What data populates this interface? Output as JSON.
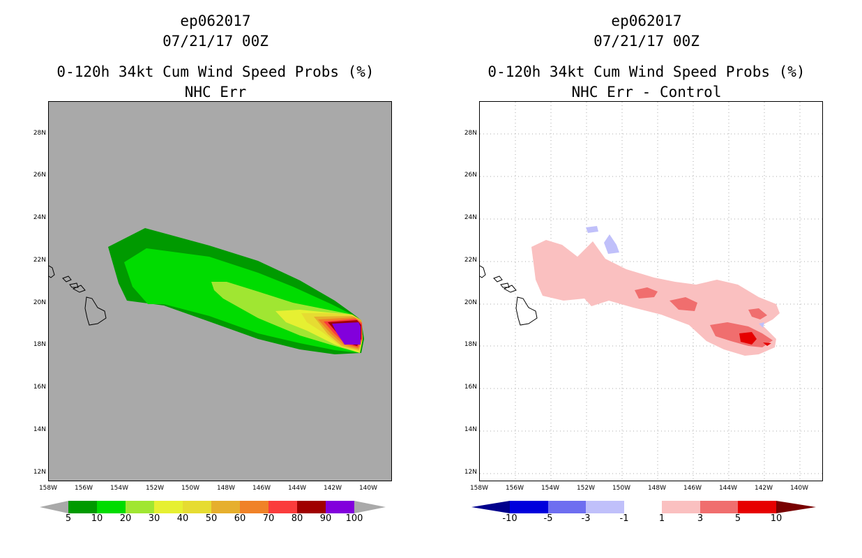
{
  "left_panel": {
    "storm_id": "ep062017",
    "datetime": "07/21/17 00Z",
    "product": "0-120h 34kt Cum Wind Speed Probs (%)",
    "subtitle": "NHC Err",
    "background_color": "#a9a9a9",
    "colorbar": {
      "labels": [
        "5",
        "10",
        "20",
        "30",
        "40",
        "50",
        "60",
        "70",
        "80",
        "90",
        "100"
      ],
      "colors": [
        "#009a00",
        "#00dc00",
        "#a0e632",
        "#e6f032",
        "#e6dc32",
        "#e6af2d",
        "#f08228",
        "#fa3c3c",
        "#a00000",
        "#8200dc"
      ],
      "end_colors": [
        "#a9a9a9",
        "#a9a9a9"
      ]
    }
  },
  "right_panel": {
    "storm_id": "ep062017",
    "datetime": "07/21/17 00Z",
    "product": "0-120h 34kt Cum Wind Speed Probs (%)",
    "subtitle": "NHC Err - Control",
    "background_color": "#ffffff",
    "colorbar": {
      "labels": [
        "-10",
        "-5",
        "-3",
        "-1",
        "1",
        "3",
        "5",
        "10"
      ],
      "colors": [
        "#0000dc",
        "#6e6ef0",
        "#c0c0fa",
        "#ffffff",
        "#fac0c0",
        "#f06e6e",
        "#e60000"
      ],
      "end_colors": [
        "#00008c",
        "#780000"
      ]
    }
  },
  "axes": {
    "lat_labels": [
      "28N",
      "26N",
      "24N",
      "22N",
      "20N",
      "18N",
      "16N",
      "14N",
      "12N"
    ],
    "lon_labels": [
      "158W",
      "156W",
      "154W",
      "152W",
      "150W",
      "148W",
      "146W",
      "144W",
      "142W",
      "140W"
    ]
  }
}
